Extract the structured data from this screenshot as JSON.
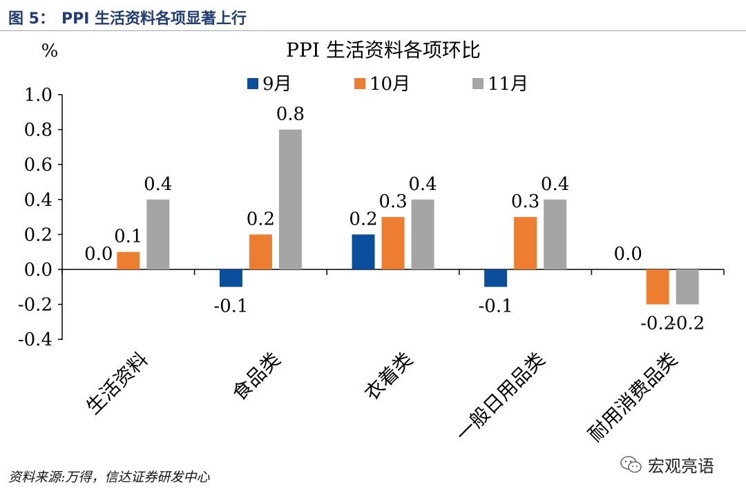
{
  "header": {
    "figure_label": "图 5：",
    "figure_title": "PPI 生活资料各项显著上行"
  },
  "chart_data": {
    "type": "bar",
    "title": "PPI 生活资料各项环比",
    "ylabel": "%",
    "categories": [
      "生活资料",
      "食品类",
      "衣着类",
      "一般日用品类",
      "耐用消费品类"
    ],
    "series": [
      {
        "name": "9月",
        "color": "#0b4f9c",
        "values": [
          0.0,
          -0.1,
          0.2,
          -0.1,
          0.0
        ]
      },
      {
        "name": "10月",
        "color": "#ed7d31",
        "values": [
          0.1,
          0.2,
          0.3,
          0.3,
          -0.2
        ]
      },
      {
        "name": "11月",
        "color": "#a5a5a5",
        "values": [
          0.4,
          0.8,
          0.4,
          0.4,
          -0.2
        ]
      }
    ],
    "ylim": [
      -0.4,
      1.0
    ],
    "yticks": [
      "1.0",
      "0.8",
      "0.6",
      "0.4",
      "0.2",
      "0.0",
      "-0.2",
      "-0.4"
    ],
    "grid": false,
    "legend_position": "top"
  },
  "footer": {
    "source": "资料来源:万得，信达证券研发中心",
    "watermark": "宏观亮语"
  }
}
